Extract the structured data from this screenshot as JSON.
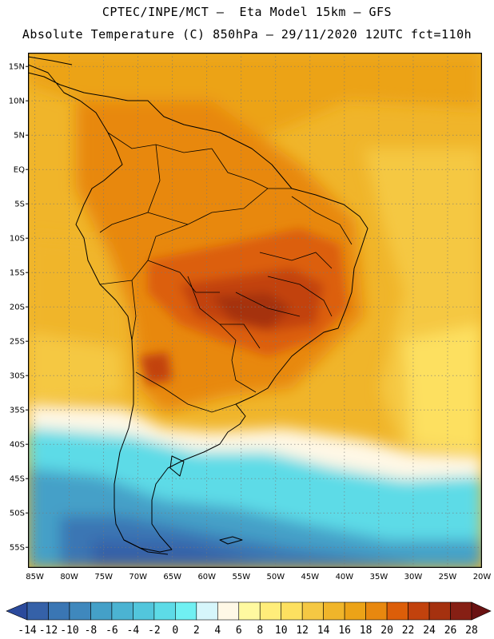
{
  "header": {
    "line1": "CPTEC/INPE/MCT –  Eta Model 15km – GFS",
    "line2": "Absolute Temperature (C) 850hPa – 29/11/2020 12UTC fct=110h"
  },
  "map": {
    "lat_labels": [
      "15N",
      "10N",
      "5N",
      "EQ",
      "5S",
      "10S",
      "15S",
      "20S",
      "25S",
      "30S",
      "35S",
      "40S",
      "45S",
      "50S",
      "55S"
    ],
    "lat_values": [
      15,
      10,
      5,
      0,
      -5,
      -10,
      -15,
      -20,
      -25,
      -30,
      -35,
      -40,
      -45,
      -50,
      -55
    ],
    "lon_labels": [
      "85W",
      "80W",
      "75W",
      "70W",
      "65W",
      "60W",
      "55W",
      "50W",
      "45W",
      "40W",
      "35W",
      "30W",
      "25W",
      "20W"
    ],
    "lon_values": [
      -85,
      -80,
      -75,
      -70,
      -65,
      -60,
      -55,
      -50,
      -45,
      -40,
      -35,
      -30,
      -25,
      -20
    ],
    "lon_range": [
      -86,
      -20
    ],
    "lat_range": [
      -58,
      17
    ],
    "gridlines": true
  },
  "colorbar": {
    "labels": [
      "-14",
      "-12",
      "-10",
      "-8",
      "-6",
      "-4",
      "-2",
      "0",
      "2",
      "4",
      "6",
      "8",
      "10",
      "12",
      "14",
      "16",
      "18",
      "20",
      "22",
      "24",
      "26",
      "28"
    ],
    "colors": [
      "#2b4a9c",
      "#3561a8",
      "#3a76b4",
      "#3f88bd",
      "#44a0c8",
      "#4bb3d2",
      "#52c6dc",
      "#5ddbe7",
      "#70f0f2",
      "#d6f6fb",
      "#fff8e6",
      "#fff9a0",
      "#ffed7a",
      "#fde060",
      "#f5c843",
      "#f0b52a",
      "#eca317",
      "#e8880f",
      "#dc5e09",
      "#c2420d",
      "#a5310f",
      "#861f14",
      "#6a1212"
    ]
  }
}
